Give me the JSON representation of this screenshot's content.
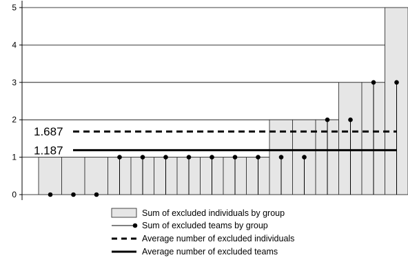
{
  "chart_data": {
    "type": "bar",
    "title": "",
    "xlabel": "",
    "ylabel": "",
    "ylim": [
      0,
      5
    ],
    "y_ticks": [
      "0",
      "1",
      "2",
      "3",
      "4",
      "5"
    ],
    "grid": "horizontal",
    "legend_placement": "bottom",
    "series": [
      {
        "name": "Sum of excluded individuals by group",
        "kind": "bar",
        "values": [
          1,
          1,
          1,
          1,
          1,
          1,
          1,
          1,
          1,
          1,
          2,
          2,
          2,
          3,
          3,
          5
        ]
      },
      {
        "name": "Sum of excluded teams by group",
        "kind": "stem",
        "values": [
          0,
          0,
          0,
          1,
          1,
          1,
          1,
          1,
          1,
          1,
          1,
          1,
          2,
          2,
          3,
          3
        ]
      }
    ],
    "averages": [
      {
        "name": "Average number of excluded individuals",
        "value": 1.687,
        "label": "1.687",
        "style": "dashed"
      },
      {
        "name": "Average number of excluded teams",
        "value": 1.187,
        "label": "1.187",
        "style": "solid"
      }
    ],
    "colors": {
      "bar_fill": "#e6e6e6",
      "bar_stroke": "#333333",
      "line": "#000000",
      "grid": "#000000"
    }
  }
}
